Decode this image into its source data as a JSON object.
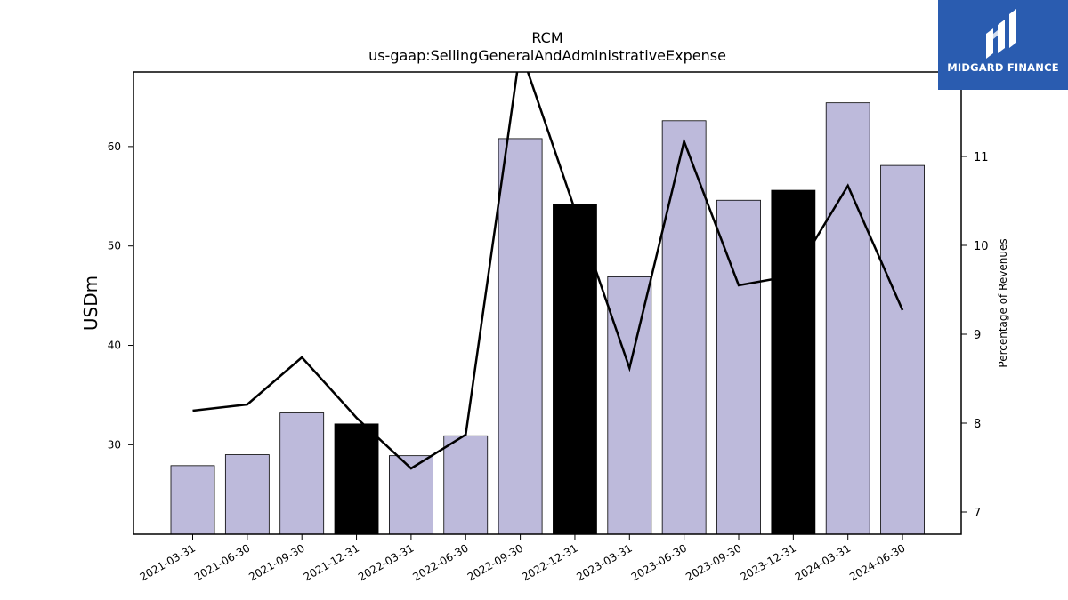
{
  "chart_data": {
    "type": "bar+line",
    "title": "RCM",
    "subtitle": "us-gaap:SellingGeneralAndAdministrativeExpense",
    "ylabel": "USDm",
    "y2label": "Percentage of Revenues",
    "categories": [
      "2021-03-31",
      "2021-06-30",
      "2021-09-30",
      "2021-12-31",
      "2022-03-31",
      "2022-06-30",
      "2022-09-30",
      "2022-12-31",
      "2023-03-31",
      "2023-06-30",
      "2023-09-30",
      "2023-12-31",
      "2024-03-31",
      "2024-06-30"
    ],
    "bars": {
      "values": [
        27.9,
        29.0,
        33.2,
        32.1,
        28.9,
        30.9,
        60.8,
        54.2,
        46.9,
        62.6,
        54.6,
        55.6,
        64.4,
        58.1
      ],
      "highlight": [
        false,
        false,
        false,
        true,
        false,
        false,
        false,
        true,
        false,
        false,
        false,
        true,
        false,
        false
      ],
      "color": "#bdbadb",
      "highlight_color": "#000000"
    },
    "line": {
      "values": [
        8.14,
        8.21,
        8.74,
        8.06,
        7.49,
        7.87,
        12.2,
        10.4,
        8.62,
        11.17,
        9.55,
        9.66,
        10.67,
        9.27
      ],
      "color": "#000000"
    },
    "ylim": [
      21,
      67.5
    ],
    "yticks": [
      30,
      40,
      50,
      60
    ],
    "y2lim": [
      6.75,
      11.95
    ],
    "y2ticks": [
      7,
      8,
      9,
      10,
      11
    ],
    "grid": false
  },
  "logo": {
    "text": "MIDGARD FINANCE",
    "bg": "#2a5cb0"
  }
}
